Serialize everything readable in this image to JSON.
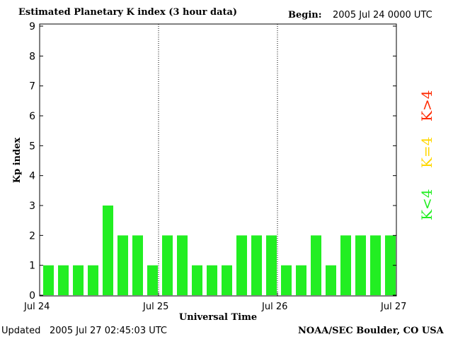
{
  "header": {
    "title": "Estimated Planetary K index (3 hour data)",
    "begin_label": "Begin:",
    "begin_value": "2005 Jul 24 0000 UTC"
  },
  "footer": {
    "updated_label": "Updated",
    "updated_value": "2005 Jul 27 02:45:03 UTC",
    "source": "NOAA/SEC Boulder, CO USA"
  },
  "legend": {
    "high": {
      "label": "K>4",
      "color": "#ff2a00"
    },
    "equal": {
      "label": "K=4",
      "color": "#ffd700"
    },
    "low": {
      "label": "K<4",
      "color": "#22ee22"
    }
  },
  "chart_data": {
    "type": "bar",
    "title": "Estimated Planetary K index (3 hour data)",
    "xlabel": "Universal Time",
    "ylabel": "Kp index",
    "ylim": [
      0,
      9
    ],
    "yticks": [
      0,
      1,
      2,
      3,
      4,
      5,
      6,
      7,
      8,
      9
    ],
    "day_labels": [
      "Jul 24",
      "Jul 25",
      "Jul 26",
      "Jul 27"
    ],
    "values": [
      1,
      1,
      1,
      1,
      3,
      2,
      2,
      1,
      2,
      2,
      1,
      1,
      1,
      2,
      2,
      2,
      1,
      1,
      2,
      1,
      2,
      2,
      2,
      2
    ],
    "bar_color": "#22ee22",
    "grid": "dotted day separators"
  }
}
